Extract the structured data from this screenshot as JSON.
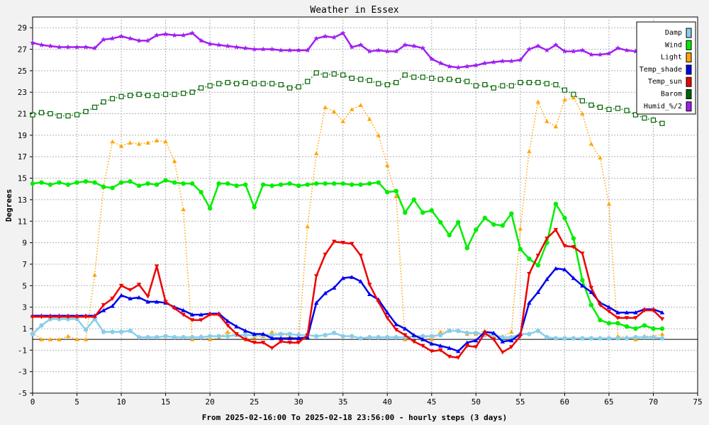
{
  "chart_data": {
    "type": "line",
    "title": "Weather in Essex",
    "xlabel": "From 2025-02-16:00 To 2025-02-18 23:56:00 - hourly steps (3 days)",
    "ylabel": "Degrees",
    "xlim": [
      0,
      75
    ],
    "ylim": [
      -5,
      30
    ],
    "x_ticks": [
      0,
      5,
      10,
      15,
      20,
      25,
      30,
      35,
      40,
      45,
      50,
      55,
      60,
      65,
      70,
      75
    ],
    "y_ticks": [
      -5,
      -3,
      -1,
      1,
      3,
      5,
      7,
      9,
      11,
      13,
      15,
      17,
      19,
      21,
      23,
      25,
      27,
      29
    ],
    "grid": true,
    "legend_position": "top-right",
    "series": [
      {
        "name": "Damp",
        "color": "#87ceeb",
        "marker": "circle",
        "style": "solid",
        "values": [
          0.5,
          1.3,
          1.9,
          1.9,
          1.9,
          1.9,
          0.9,
          1.9,
          0.7,
          0.7,
          0.7,
          0.8,
          0.2,
          0.2,
          0.2,
          0.3,
          0.2,
          0.2,
          0.2,
          0.2,
          0.3,
          0.3,
          0.3,
          0.4,
          0.4,
          0.4,
          0.4,
          0.4,
          0.5,
          0.5,
          0.4,
          0.4,
          0.3,
          0.4,
          0.6,
          0.3,
          0.3,
          0.1,
          0.2,
          0.2,
          0.2,
          0.2,
          0.2,
          0.3,
          0.3,
          0.3,
          0.4,
          0.8,
          0.8,
          0.6,
          0.6,
          0.4,
          0.4,
          0.2,
          0.2,
          0.5,
          0.5,
          0.8,
          0.2,
          0.1,
          0.1,
          0.1,
          0.1,
          0.1,
          0.1,
          0.1,
          0.1,
          0.1,
          0.2,
          0.2,
          0.2,
          0.1
        ]
      },
      {
        "name": "Wind",
        "color": "#00ee00",
        "marker": "circle",
        "style": "solid",
        "values": [
          14.5,
          14.6,
          14.4,
          14.6,
          14.4,
          14.6,
          14.7,
          14.6,
          14.2,
          14.1,
          14.6,
          14.7,
          14.3,
          14.5,
          14.4,
          14.8,
          14.6,
          14.5,
          14.5,
          13.7,
          12.2,
          14.5,
          14.5,
          14.3,
          14.4,
          12.3,
          14.4,
          14.3,
          14.4,
          14.5,
          14.3,
          14.4,
          14.5,
          14.5,
          14.5,
          14.5,
          14.4,
          14.4,
          14.5,
          14.6,
          13.7,
          13.8,
          11.8,
          13.0,
          11.8,
          12.0,
          10.9,
          9.7,
          10.9,
          8.5,
          10.2,
          11.3,
          10.7,
          10.6,
          11.7,
          8.4,
          7.5,
          6.9,
          9.0,
          12.6,
          11.3,
          9.4,
          5.5,
          3.2,
          1.8,
          1.5,
          1.5,
          1.2,
          1.0,
          1.3,
          1.0,
          1.0
        ]
      },
      {
        "name": "Light",
        "color": "#ffa500",
        "marker": "triangle",
        "style": "dotted",
        "values": [
          0.6,
          0.0,
          0.0,
          0.0,
          0.3,
          0.0,
          0.0,
          6.0,
          14.2,
          18.4,
          18.0,
          18.3,
          18.2,
          18.3,
          18.5,
          18.4,
          16.6,
          12.1,
          0.0,
          0.3,
          0.0,
          0.2,
          0.7,
          0.4,
          0.0,
          0.2,
          0.3,
          0.7,
          0.5,
          0.3,
          0.0,
          10.5,
          17.3,
          21.6,
          21.2,
          20.3,
          21.4,
          21.8,
          20.5,
          19.0,
          16.2,
          13.3,
          0.0,
          0.3,
          0.3,
          0.0,
          0.7,
          0.8,
          0.8,
          0.5,
          0.5,
          0.8,
          0.3,
          0.3,
          0.7,
          10.3,
          17.5,
          22.1,
          20.3,
          19.8,
          22.3,
          22.5,
          21.0,
          18.2,
          16.9,
          12.6,
          0.3,
          0.2,
          0.0,
          0.3,
          0.3,
          0.5
        ]
      },
      {
        "name": "Temp_shade",
        "color": "#0000ee",
        "marker": "triangle",
        "style": "solid",
        "values": [
          2.2,
          2.2,
          2.2,
          2.2,
          2.2,
          2.2,
          2.2,
          2.2,
          2.7,
          3.1,
          4.1,
          3.8,
          3.9,
          3.5,
          3.5,
          3.4,
          3.0,
          2.7,
          2.3,
          2.3,
          2.4,
          2.4,
          1.7,
          1.2,
          0.8,
          0.5,
          0.5,
          0.1,
          0.1,
          0.1,
          0.1,
          0.2,
          3.4,
          4.3,
          4.8,
          5.7,
          5.8,
          5.4,
          4.2,
          3.7,
          2.5,
          1.4,
          1.0,
          0.4,
          0.0,
          -0.4,
          -0.6,
          -0.8,
          -1.1,
          -0.3,
          -0.1,
          0.7,
          0.6,
          -0.2,
          -0.1,
          0.5,
          3.4,
          4.4,
          5.6,
          6.6,
          6.5,
          5.7,
          5.0,
          4.4,
          3.4,
          3.0,
          2.5,
          2.5,
          2.5,
          2.8,
          2.8,
          2.5
        ]
      },
      {
        "name": "Temp_sun",
        "color": "#ee0000",
        "marker": "triangle-down",
        "style": "solid",
        "values": [
          2.1,
          2.1,
          2.1,
          2.1,
          2.1,
          2.1,
          2.1,
          2.1,
          3.2,
          3.8,
          5.0,
          4.6,
          5.1,
          4.0,
          6.8,
          3.5,
          2.9,
          2.3,
          1.8,
          1.8,
          2.3,
          2.3,
          1.3,
          0.5,
          0.0,
          -0.3,
          -0.3,
          -0.8,
          -0.2,
          -0.3,
          -0.3,
          0.4,
          5.9,
          7.9,
          9.1,
          9.0,
          8.9,
          7.8,
          5.1,
          3.5,
          2.0,
          0.9,
          0.4,
          -0.2,
          -0.6,
          -1.1,
          -1.0,
          -1.6,
          -1.7,
          -0.6,
          -0.7,
          0.6,
          0.0,
          -1.2,
          -0.7,
          0.3,
          6.1,
          7.8,
          9.4,
          10.2,
          8.7,
          8.6,
          8.0,
          4.8,
          3.2,
          2.6,
          2.0,
          2.0,
          2.0,
          2.7,
          2.7,
          1.9
        ]
      },
      {
        "name": "Barom",
        "color": "#006400",
        "marker": "square",
        "style": "dotted",
        "values": [
          20.9,
          21.1,
          21.0,
          20.8,
          20.8,
          20.9,
          21.2,
          21.6,
          22.1,
          22.4,
          22.6,
          22.7,
          22.8,
          22.7,
          22.7,
          22.8,
          22.8,
          22.9,
          23.0,
          23.4,
          23.6,
          23.8,
          23.9,
          23.8,
          23.9,
          23.8,
          23.8,
          23.8,
          23.7,
          23.4,
          23.5,
          24.0,
          24.8,
          24.6,
          24.7,
          24.6,
          24.3,
          24.2,
          24.1,
          23.8,
          23.7,
          23.9,
          24.6,
          24.4,
          24.4,
          24.3,
          24.2,
          24.2,
          24.1,
          24.0,
          23.6,
          23.7,
          23.4,
          23.6,
          23.6,
          23.9,
          23.9,
          23.9,
          23.8,
          23.7,
          23.2,
          22.8,
          22.2,
          21.8,
          21.6,
          21.4,
          21.5,
          21.3,
          20.9,
          20.6,
          20.4,
          20.1
        ]
      },
      {
        "name": "Humid_%/2",
        "color": "#a020f0",
        "marker": "star",
        "style": "solid",
        "values": [
          27.6,
          27.4,
          27.3,
          27.2,
          27.2,
          27.2,
          27.2,
          27.1,
          27.9,
          28.0,
          28.2,
          28.0,
          27.8,
          27.8,
          28.3,
          28.4,
          28.3,
          28.3,
          28.5,
          27.8,
          27.5,
          27.4,
          27.3,
          27.2,
          27.1,
          27.0,
          27.0,
          27.0,
          26.9,
          26.9,
          26.9,
          26.9,
          28.0,
          28.2,
          28.1,
          28.5,
          27.2,
          27.4,
          26.8,
          26.9,
          26.8,
          26.8,
          27.4,
          27.3,
          27.1,
          26.1,
          25.7,
          25.4,
          25.3,
          25.4,
          25.5,
          25.7,
          25.8,
          25.9,
          25.9,
          26.0,
          27.0,
          27.3,
          26.9,
          27.4,
          26.8,
          26.8,
          26.9,
          26.5,
          26.5,
          26.6,
          27.1,
          26.9,
          26.8,
          26.8,
          26.8,
          26.8
        ]
      }
    ]
  }
}
